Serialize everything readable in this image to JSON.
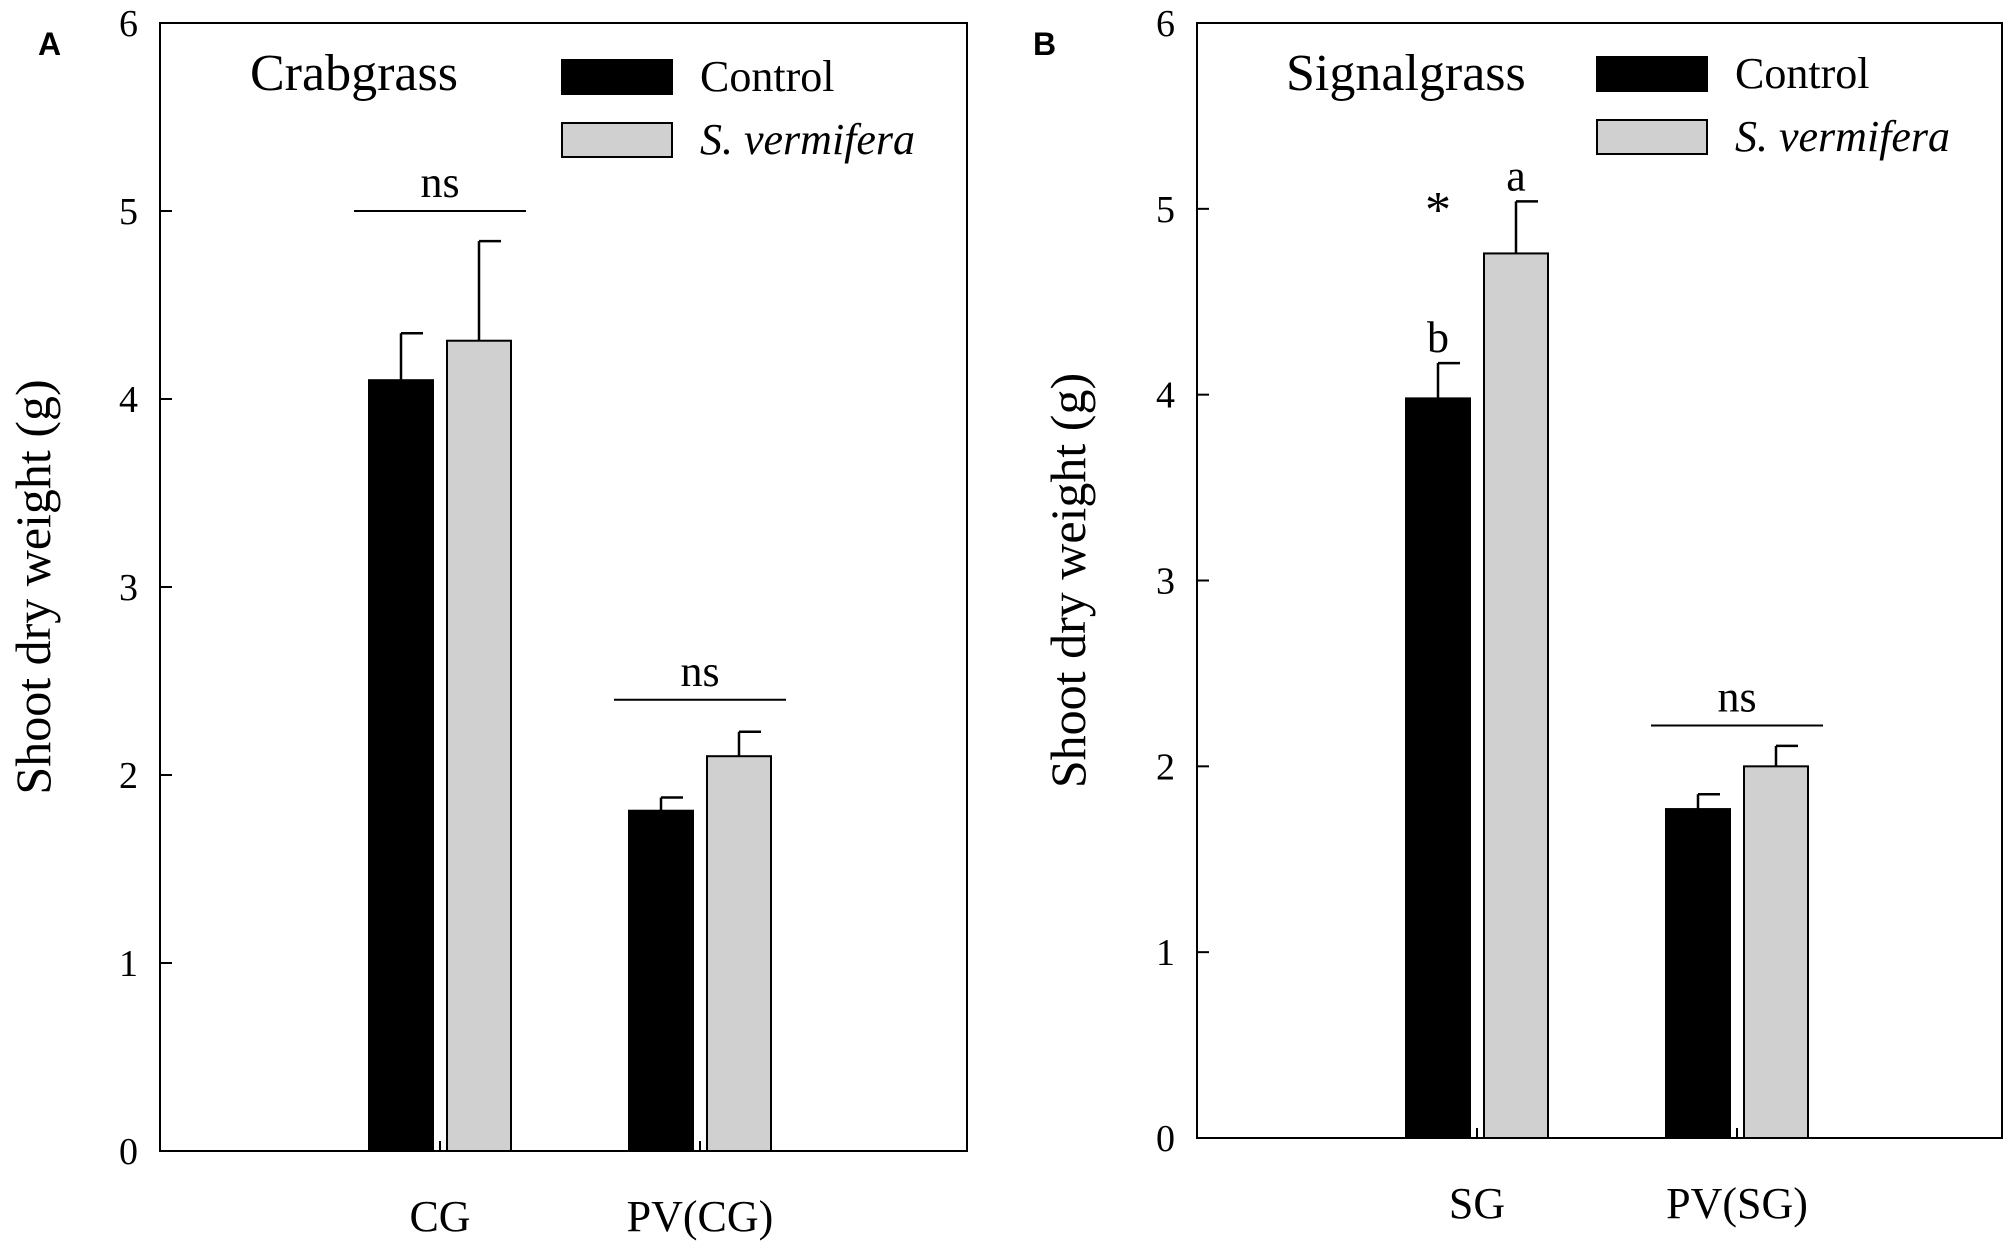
{
  "colors": {
    "control": "#000000",
    "treatment": "#d0d0d0",
    "axis": "#000000"
  },
  "chart_data": [
    {
      "type": "bar",
      "panel": "A",
      "title": "Crabgrass",
      "ylabel": "Shoot dry weight (g)",
      "xlabel": "",
      "ylim": [
        0,
        6
      ],
      "yticks": [
        "0",
        "1",
        "2",
        "3",
        "4",
        "5",
        "6"
      ],
      "categories": [
        "CG",
        "PV(CG)"
      ],
      "legend_position": "top-right",
      "series": [
        {
          "name": "Control",
          "italic": false,
          "values": [
            4.1,
            1.81
          ],
          "errors": [
            0.25,
            0.07
          ]
        },
        {
          "name": "S. vermifera",
          "italic": true,
          "values": [
            4.31,
            2.1
          ],
          "errors": [
            0.53,
            0.13
          ]
        }
      ],
      "annotations": [
        {
          "text": "ns",
          "kind": "bracket",
          "group": 0,
          "y": 5.0
        },
        {
          "text": "ns",
          "kind": "bracket",
          "group": 1,
          "y": 2.4
        }
      ]
    },
    {
      "type": "bar",
      "panel": "B",
      "title": "Signalgrass",
      "ylabel": "Shoot dry weight (g)",
      "xlabel": "",
      "ylim": [
        0,
        6
      ],
      "yticks": [
        "0",
        "1",
        "2",
        "3",
        "4",
        "5",
        "6"
      ],
      "categories": [
        "SG",
        "PV(SG)"
      ],
      "legend_position": "top-right",
      "series": [
        {
          "name": "Control",
          "italic": false,
          "values": [
            3.98,
            1.77
          ],
          "errors": [
            0.19,
            0.08
          ]
        },
        {
          "name": "S. vermifera",
          "italic": true,
          "values": [
            4.76,
            2.0
          ],
          "errors": [
            0.28,
            0.11
          ]
        }
      ],
      "annotations": [
        {
          "text": "*",
          "kind": "above",
          "group": 0,
          "series": 0,
          "y": 5.0
        },
        {
          "text": "a",
          "kind": "above",
          "group": 0,
          "series": 1,
          "y": 5.1
        },
        {
          "text": "b",
          "kind": "above",
          "group": 0,
          "series": 0,
          "y": 4.23
        },
        {
          "text": "ns",
          "kind": "bracket",
          "group": 1,
          "y": 2.22
        }
      ]
    }
  ]
}
